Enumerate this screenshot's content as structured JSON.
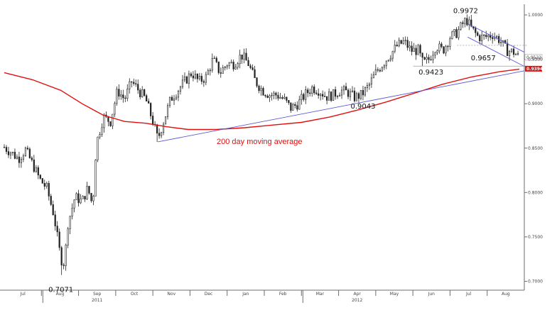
{
  "chart_data": {
    "type": "candlestick",
    "ylim": [
      0.69,
      1.012
    ],
    "yticks": [
      {
        "value": 1.0,
        "label": "1.0000"
      },
      {
        "value": 0.95,
        "label": "0.9500"
      },
      {
        "value": 0.9,
        "label": "0.9000"
      },
      {
        "value": 0.85,
        "label": "0.8500"
      },
      {
        "value": 0.8,
        "label": "0.8000"
      },
      {
        "value": 0.75,
        "label": "0.7500"
      },
      {
        "value": 0.7,
        "label": "0.7000"
      }
    ],
    "months": [
      "Jul",
      "Aug",
      "Sep",
      "Oct",
      "Nov",
      "Dec",
      "Jan",
      "Feb",
      "Mar",
      "Apr",
      "May",
      "Jun",
      "Jul",
      "Aug"
    ],
    "years": [
      {
        "label": "2011",
        "month_index": 2
      },
      {
        "label": "2012",
        "month_index": 9
      }
    ],
    "last_price": {
      "value": 0.9522,
      "label": "0.9522"
    },
    "ma_value": {
      "value": 0.9394,
      "label": "0.9394",
      "color": "#e01010"
    },
    "ma_label": "200 day moving average",
    "annotations": [
      {
        "label": "0.7071",
        "value": 0.7071,
        "day": 80
      },
      {
        "label": "0.9043",
        "value": 0.9043,
        "day": 497
      },
      {
        "label": "0.9423",
        "value": 0.9423,
        "day": 591
      },
      {
        "label": "0.9972",
        "value": 0.9972,
        "day": 652
      },
      {
        "label": "0.9657",
        "value": 0.9657,
        "day": 665
      }
    ],
    "waypoints": [
      [
        0,
        0.851
      ],
      [
        10,
        0.845
      ],
      [
        20,
        0.838
      ],
      [
        30,
        0.848
      ],
      [
        40,
        0.832
      ],
      [
        50,
        0.815
      ],
      [
        60,
        0.805
      ],
      [
        70,
        0.775
      ],
      [
        80,
        0.725
      ],
      [
        85,
        0.72
      ],
      [
        90,
        0.765
      ],
      [
        100,
        0.795
      ],
      [
        110,
        0.79
      ],
      [
        118,
        0.805
      ],
      [
        125,
        0.785
      ],
      [
        130,
        0.855
      ],
      [
        140,
        0.885
      ],
      [
        150,
        0.88
      ],
      [
        160,
        0.915
      ],
      [
        170,
        0.905
      ],
      [
        180,
        0.925
      ],
      [
        190,
        0.915
      ],
      [
        200,
        0.905
      ],
      [
        210,
        0.88
      ],
      [
        217,
        0.86
      ],
      [
        225,
        0.88
      ],
      [
        235,
        0.905
      ],
      [
        245,
        0.915
      ],
      [
        255,
        0.925
      ],
      [
        265,
        0.935
      ],
      [
        275,
        0.925
      ],
      [
        285,
        0.93
      ],
      [
        295,
        0.95
      ],
      [
        305,
        0.935
      ],
      [
        315,
        0.945
      ],
      [
        325,
        0.945
      ],
      [
        335,
        0.955
      ],
      [
        345,
        0.945
      ],
      [
        355,
        0.925
      ],
      [
        365,
        0.915
      ],
      [
        375,
        0.91
      ],
      [
        385,
        0.91
      ],
      [
        395,
        0.905
      ],
      [
        405,
        0.895
      ],
      [
        415,
        0.9
      ],
      [
        425,
        0.91
      ],
      [
        435,
        0.918
      ],
      [
        445,
        0.915
      ],
      [
        455,
        0.908
      ],
      [
        465,
        0.91
      ],
      [
        475,
        0.915
      ],
      [
        485,
        0.913
      ],
      [
        495,
        0.907
      ],
      [
        505,
        0.91
      ],
      [
        515,
        0.92
      ],
      [
        525,
        0.935
      ],
      [
        535,
        0.945
      ],
      [
        545,
        0.955
      ],
      [
        555,
        0.965
      ],
      [
        565,
        0.97
      ],
      [
        575,
        0.96
      ],
      [
        585,
        0.96
      ],
      [
        592,
        0.945
      ],
      [
        600,
        0.95
      ],
      [
        610,
        0.965
      ],
      [
        620,
        0.96
      ],
      [
        630,
        0.975
      ],
      [
        640,
        0.98
      ],
      [
        648,
        0.99
      ],
      [
        653,
        0.995
      ],
      [
        660,
        0.985
      ],
      [
        670,
        0.975
      ],
      [
        680,
        0.975
      ],
      [
        690,
        0.978
      ],
      [
        700,
        0.972
      ],
      [
        710,
        0.96
      ],
      [
        720,
        0.958
      ],
      [
        728,
        0.952
      ]
    ],
    "ma_points": [
      [
        0,
        0.935
      ],
      [
        40,
        0.927
      ],
      [
        80,
        0.915
      ],
      [
        110,
        0.9
      ],
      [
        140,
        0.887
      ],
      [
        170,
        0.88
      ],
      [
        200,
        0.878
      ],
      [
        230,
        0.874
      ],
      [
        260,
        0.871
      ],
      [
        300,
        0.871
      ],
      [
        340,
        0.873
      ],
      [
        380,
        0.876
      ],
      [
        420,
        0.879
      ],
      [
        460,
        0.885
      ],
      [
        500,
        0.893
      ],
      [
        540,
        0.902
      ],
      [
        580,
        0.912
      ],
      [
        620,
        0.922
      ],
      [
        660,
        0.93
      ],
      [
        700,
        0.936
      ],
      [
        728,
        0.939
      ]
    ],
    "trendlines": [
      {
        "from": [
          217,
          0.857
        ],
        "to": [
          735,
          0.937
        ]
      },
      {
        "from": [
          655,
          0.99
        ],
        "to": [
          735,
          0.958
        ]
      },
      {
        "from": [
          655,
          0.975
        ],
        "to": [
          735,
          0.942
        ]
      }
    ],
    "hlines": [
      {
        "from": 578,
        "to": 740,
        "value": 0.9423,
        "style": "solid"
      },
      {
        "from": 640,
        "to": 740,
        "value": 0.9657,
        "style": "dashed"
      }
    ]
  }
}
